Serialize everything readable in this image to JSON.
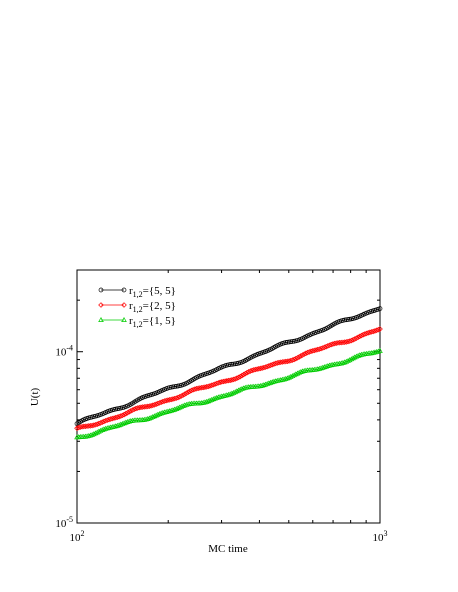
{
  "chart_data": {
    "type": "line",
    "title": "",
    "xlabel": "MC time",
    "ylabel": "U(t)",
    "xscale": "log",
    "yscale": "log",
    "xlim": [
      100,
      1000
    ],
    "ylim": [
      1e-05,
      0.0003
    ],
    "x_ticks": [
      {
        "value": 100,
        "base": "10",
        "exp": "2"
      },
      {
        "value": 1000,
        "base": "10",
        "exp": "3"
      }
    ],
    "y_ticks": [
      {
        "value": 1e-05,
        "base": "10",
        "exp": "-5"
      },
      {
        "value": 0.0001,
        "base": "10",
        "exp": "-4"
      }
    ],
    "grid": false,
    "legend_position": "top-left",
    "series": [
      {
        "name": "r1,2={5, 5}",
        "legend": {
          "main": "r",
          "sub": "1,2",
          "rest": "={5, 5}"
        },
        "color": "#000000",
        "marker": "circle",
        "x_start": 100,
        "x_end": 1000,
        "y_start": 3.8e-05,
        "y_end": 0.000181
      },
      {
        "name": "r1,2={2, 5}",
        "legend": {
          "main": "r",
          "sub": "1,2",
          "rest": "={2, 5}"
        },
        "color": "#ff0000",
        "marker": "diamond",
        "x_start": 100,
        "x_end": 1000,
        "y_start": 3.5e-05,
        "y_end": 0.000135
      },
      {
        "name": "r1,2={1, 5}",
        "legend": {
          "main": "r",
          "sub": "1,2",
          "rest": "={1, 5}"
        },
        "color": "#00cc00",
        "marker": "triangle",
        "x_start": 100,
        "x_end": 1000,
        "y_start": 3.15e-05,
        "y_end": 0.000101
      }
    ]
  }
}
